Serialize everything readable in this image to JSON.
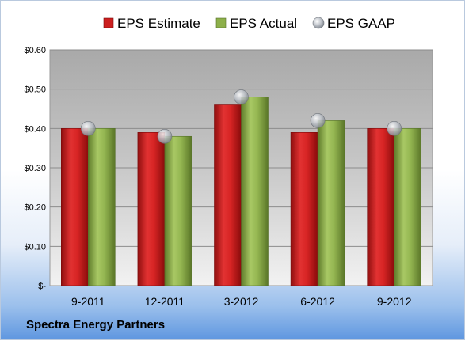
{
  "company_name": "Spectra Energy Partners",
  "chart_data": {
    "type": "bar",
    "categories": [
      "9-2011",
      "12-2011",
      "3-2012",
      "6-2012",
      "9-2012"
    ],
    "series": [
      {
        "name": "EPS Estimate",
        "kind": "bar",
        "color": "#cc1f1f",
        "values": [
          0.4,
          0.39,
          0.46,
          0.39,
          0.4
        ]
      },
      {
        "name": "EPS Actual",
        "kind": "bar",
        "color": "#8db04a",
        "values": [
          0.4,
          0.38,
          0.48,
          0.42,
          0.4
        ]
      },
      {
        "name": "EPS GAAP",
        "kind": "marker",
        "color": "#b7bcc4",
        "values": [
          0.4,
          0.38,
          0.48,
          0.42,
          0.4
        ]
      }
    ],
    "y_ticks": [
      {
        "value": 0,
        "label": "$-"
      },
      {
        "value": 0.1,
        "label": "$0.10"
      },
      {
        "value": 0.2,
        "label": "$0.20"
      },
      {
        "value": 0.3,
        "label": "$0.30"
      },
      {
        "value": 0.4,
        "label": "$0.40"
      },
      {
        "value": 0.5,
        "label": "$0.50"
      },
      {
        "value": 0.6,
        "label": "$0.60"
      }
    ],
    "ylim": [
      0,
      0.6
    ],
    "grid": true,
    "legend_position": "top"
  }
}
